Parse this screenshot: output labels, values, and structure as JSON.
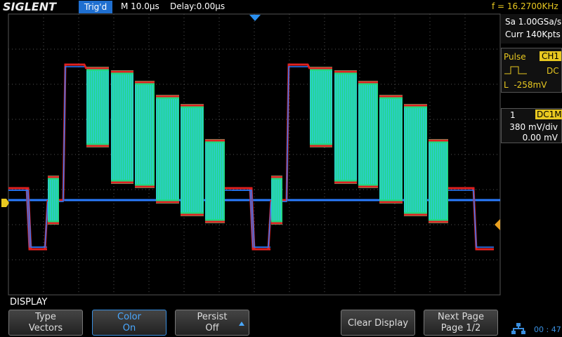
{
  "header": {
    "brand": "SIGLENT",
    "status": "Trig'd",
    "timebase": "M 10.0μs",
    "delay": "Delay:0.00μs",
    "frequency": "f = 16.2700KHz"
  },
  "acquisition": {
    "sample_rate": "Sa 1.00GSa/s",
    "memory": "Curr 140Kpts"
  },
  "trigger": {
    "type": "Pulse",
    "source": "CH1",
    "coupling": "DC",
    "level": "L  -258mV"
  },
  "channel": {
    "number": "1",
    "coupling": "DC1M",
    "scale": "380 mV/div",
    "offset": "0.00 mV"
  },
  "menu": {
    "title": "DISPLAY",
    "buttons": [
      {
        "label": "Type",
        "value": "Vectors"
      },
      {
        "label": "Color",
        "value": "On"
      },
      {
        "label": "Persist",
        "value": "Off"
      },
      {
        "label": "Clear Display"
      },
      {
        "label": "Next Page",
        "value": "Page 1/2"
      }
    ]
  },
  "clock": "00 : 47"
}
